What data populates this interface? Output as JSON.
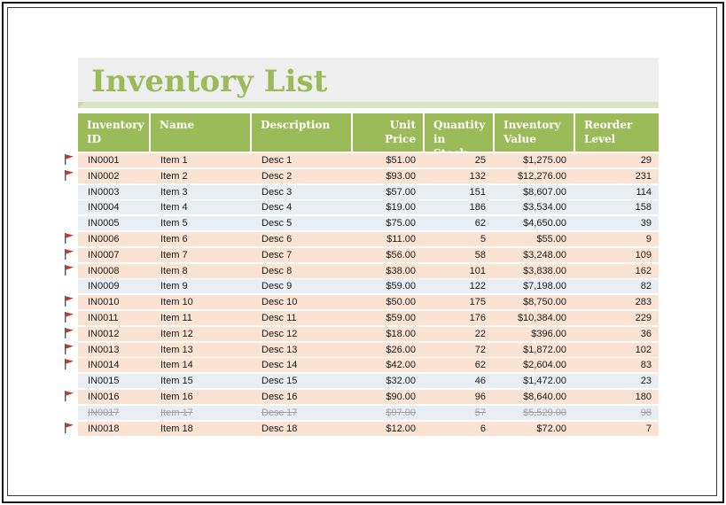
{
  "title": "Inventory List",
  "colors": {
    "accent": "#9bbb59",
    "row_orange": "#fbe3d4",
    "row_blue": "#e9eef5",
    "flag": "#c0392b"
  },
  "columns": [
    {
      "key": "id",
      "line1": "Inventory",
      "line2": "ID"
    },
    {
      "key": "name",
      "line1": "Name",
      "line2": ""
    },
    {
      "key": "desc",
      "line1": "Description",
      "line2": ""
    },
    {
      "key": "price",
      "line1": "Unit Price",
      "line2": ""
    },
    {
      "key": "qty",
      "line1": "Quantity in",
      "line2": "Stock"
    },
    {
      "key": "value",
      "line1": "Inventory",
      "line2": "Value"
    },
    {
      "key": "reorder",
      "line1": "Reorder",
      "line2": "Level"
    }
  ],
  "rows": [
    {
      "flag": true,
      "id": "IN0001",
      "name": "Item 1",
      "desc": "Desc 1",
      "price": "$51.00",
      "qty": "25",
      "value": "$1,275.00",
      "reorder": "29",
      "tint": "orange",
      "discontinued": false
    },
    {
      "flag": true,
      "id": "IN0002",
      "name": "Item 2",
      "desc": "Desc 2",
      "price": "$93.00",
      "qty": "132",
      "value": "$12,276.00",
      "reorder": "231",
      "tint": "orange",
      "discontinued": false
    },
    {
      "flag": false,
      "id": "IN0003",
      "name": "Item 3",
      "desc": "Desc 3",
      "price": "$57.00",
      "qty": "151",
      "value": "$8,607.00",
      "reorder": "114",
      "tint": "blue",
      "discontinued": false
    },
    {
      "flag": false,
      "id": "IN0004",
      "name": "Item 4",
      "desc": "Desc 4",
      "price": "$19.00",
      "qty": "186",
      "value": "$3,534.00",
      "reorder": "158",
      "tint": "blue",
      "discontinued": false
    },
    {
      "flag": false,
      "id": "IN0005",
      "name": "Item 5",
      "desc": "Desc 5",
      "price": "$75.00",
      "qty": "62",
      "value": "$4,650.00",
      "reorder": "39",
      "tint": "blue",
      "discontinued": false
    },
    {
      "flag": true,
      "id": "IN0006",
      "name": "Item 6",
      "desc": "Desc 6",
      "price": "$11.00",
      "qty": "5",
      "value": "$55.00",
      "reorder": "9",
      "tint": "orange",
      "discontinued": false
    },
    {
      "flag": true,
      "id": "IN0007",
      "name": "Item 7",
      "desc": "Desc 7",
      "price": "$56.00",
      "qty": "58",
      "value": "$3,248.00",
      "reorder": "109",
      "tint": "orange",
      "discontinued": false
    },
    {
      "flag": true,
      "id": "IN0008",
      "name": "Item 8",
      "desc": "Desc 8",
      "price": "$38.00",
      "qty": "101",
      "value": "$3,838.00",
      "reorder": "162",
      "tint": "orange",
      "discontinued": false
    },
    {
      "flag": false,
      "id": "IN0009",
      "name": "Item 9",
      "desc": "Desc 9",
      "price": "$59.00",
      "qty": "122",
      "value": "$7,198.00",
      "reorder": "82",
      "tint": "blue",
      "discontinued": false
    },
    {
      "flag": true,
      "id": "IN0010",
      "name": "Item 10",
      "desc": "Desc 10",
      "price": "$50.00",
      "qty": "175",
      "value": "$8,750.00",
      "reorder": "283",
      "tint": "orange",
      "discontinued": false
    },
    {
      "flag": true,
      "id": "IN0011",
      "name": "Item 11",
      "desc": "Desc 11",
      "price": "$59.00",
      "qty": "176",
      "value": "$10,384.00",
      "reorder": "229",
      "tint": "orange",
      "discontinued": false
    },
    {
      "flag": true,
      "id": "IN0012",
      "name": "Item 12",
      "desc": "Desc 12",
      "price": "$18.00",
      "qty": "22",
      "value": "$396.00",
      "reorder": "36",
      "tint": "orange",
      "discontinued": false
    },
    {
      "flag": true,
      "id": "IN0013",
      "name": "Item 13",
      "desc": "Desc 13",
      "price": "$26.00",
      "qty": "72",
      "value": "$1,872.00",
      "reorder": "102",
      "tint": "orange",
      "discontinued": false
    },
    {
      "flag": true,
      "id": "IN0014",
      "name": "Item 14",
      "desc": "Desc 14",
      "price": "$42.00",
      "qty": "62",
      "value": "$2,604.00",
      "reorder": "83",
      "tint": "orange",
      "discontinued": false
    },
    {
      "flag": false,
      "id": "IN0015",
      "name": "Item 15",
      "desc": "Desc 15",
      "price": "$32.00",
      "qty": "46",
      "value": "$1,472.00",
      "reorder": "23",
      "tint": "blue",
      "discontinued": false
    },
    {
      "flag": true,
      "id": "IN0016",
      "name": "Item 16",
      "desc": "Desc 16",
      "price": "$90.00",
      "qty": "96",
      "value": "$8,640.00",
      "reorder": "180",
      "tint": "orange",
      "discontinued": false
    },
    {
      "flag": false,
      "id": "IN0017",
      "name": "Item 17",
      "desc": "Desc 17",
      "price": "$97.00",
      "qty": "57",
      "value": "$5,529.00",
      "reorder": "98",
      "tint": "blue",
      "discontinued": true
    },
    {
      "flag": true,
      "id": "IN0018",
      "name": "Item 18",
      "desc": "Desc 18",
      "price": "$12.00",
      "qty": "6",
      "value": "$72.00",
      "reorder": "7",
      "tint": "orange",
      "discontinued": false
    }
  ]
}
